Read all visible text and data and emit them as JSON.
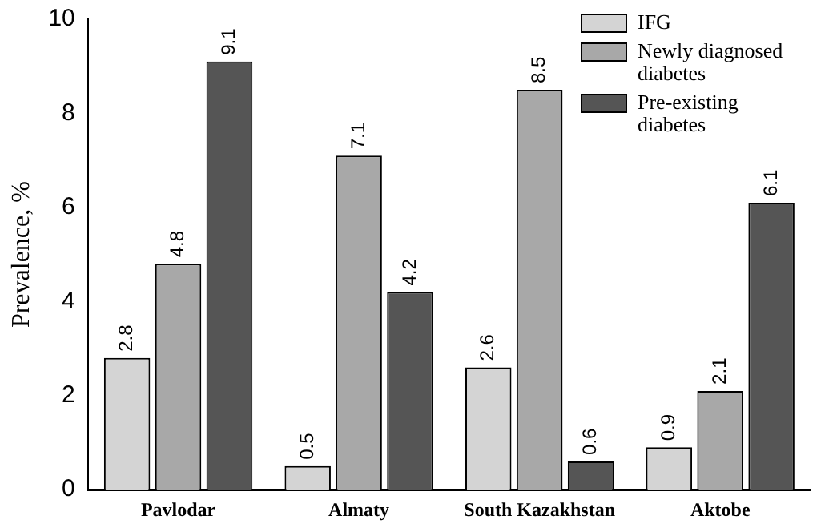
{
  "chart_data": {
    "type": "bar",
    "ylabel": "Prevalence, %",
    "categories": [
      "Pavlodar",
      "Almaty",
      "South Kazakhstan",
      "Aktobe"
    ],
    "series": [
      {
        "name": "IFG",
        "color": "#d4d4d4",
        "values": [
          2.8,
          0.5,
          2.6,
          0.9
        ]
      },
      {
        "name": "Newly diagnosed diabetes",
        "color": "#a8a8a8",
        "values": [
          4.8,
          7.1,
          8.5,
          2.1
        ]
      },
      {
        "name": "Pre-existing diabetes",
        "color": "#555555",
        "values": [
          9.1,
          4.2,
          0.6,
          6.1
        ]
      }
    ],
    "ylim": [
      0,
      10
    ],
    "yticks": [
      0,
      2,
      4,
      6,
      8,
      10
    ],
    "grid": false,
    "legend": "top right",
    "data_labels": true
  }
}
